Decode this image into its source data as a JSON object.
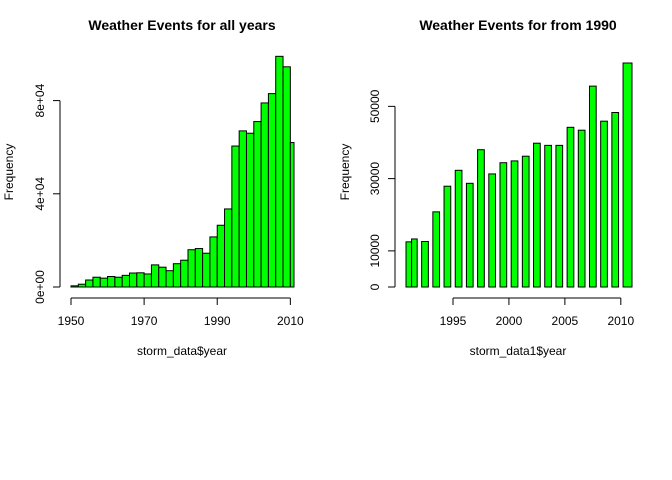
{
  "chart_data": [
    {
      "type": "bar",
      "title": "Weather Events for all years",
      "xlabel": "storm_data$year",
      "ylabel": "Frequency",
      "xlim": [
        1950,
        2011
      ],
      "ylim": [
        0,
        100000
      ],
      "x_ticks": [
        1950,
        1970,
        1990,
        2010
      ],
      "x_tick_labels": [
        "1950",
        "1970",
        "1990",
        "2010"
      ],
      "y_ticks": [
        0,
        40000,
        80000
      ],
      "y_tick_labels": [
        "0e+00",
        "4e+04",
        "8e+04"
      ],
      "bar_color": "#00ff00",
      "bins": [
        {
          "x0": 1950,
          "x1": 1952,
          "value": 500
        },
        {
          "x0": 1952,
          "x1": 1954,
          "value": 1200
        },
        {
          "x0": 1954,
          "x1": 1956,
          "value": 3000
        },
        {
          "x0": 1956,
          "x1": 1958,
          "value": 4200
        },
        {
          "x0": 1958,
          "x1": 1960,
          "value": 3800
        },
        {
          "x0": 1960,
          "x1": 1962,
          "value": 4500
        },
        {
          "x0": 1962,
          "x1": 1964,
          "value": 4200
        },
        {
          "x0": 1964,
          "x1": 1966,
          "value": 5000
        },
        {
          "x0": 1966,
          "x1": 1968,
          "value": 6000
        },
        {
          "x0": 1968,
          "x1": 1970,
          "value": 6100
        },
        {
          "x0": 1970,
          "x1": 1972,
          "value": 5600
        },
        {
          "x0": 1972,
          "x1": 1974,
          "value": 9500
        },
        {
          "x0": 1974,
          "x1": 1976,
          "value": 8500
        },
        {
          "x0": 1976,
          "x1": 1978,
          "value": 7000
        },
        {
          "x0": 1978,
          "x1": 1980,
          "value": 10000
        },
        {
          "x0": 1980,
          "x1": 1982,
          "value": 11500
        },
        {
          "x0": 1982,
          "x1": 1984,
          "value": 16000
        },
        {
          "x0": 1984,
          "x1": 1986,
          "value": 16500
        },
        {
          "x0": 1986,
          "x1": 1988,
          "value": 14500
        },
        {
          "x0": 1988,
          "x1": 1990,
          "value": 21500
        },
        {
          "x0": 1990,
          "x1": 1992,
          "value": 26500
        },
        {
          "x0": 1992,
          "x1": 1994,
          "value": 33500
        },
        {
          "x0": 1994,
          "x1": 1996,
          "value": 60500
        },
        {
          "x0": 1996,
          "x1": 1998,
          "value": 67000
        },
        {
          "x0": 1998,
          "x1": 2000,
          "value": 66000
        },
        {
          "x0": 2000,
          "x1": 2002,
          "value": 71000
        },
        {
          "x0": 2002,
          "x1": 2004,
          "value": 79000
        },
        {
          "x0": 2004,
          "x1": 2006,
          "value": 83000
        },
        {
          "x0": 2006,
          "x1": 2008,
          "value": 99000
        },
        {
          "x0": 2008,
          "x1": 2010,
          "value": 94500
        },
        {
          "x0": 2010,
          "x1": 2011,
          "value": 62000
        }
      ]
    },
    {
      "type": "bar",
      "title": "Weather Events for from 1990",
      "xlabel": "storm_data1$year",
      "ylabel": "Frequency",
      "xlim": [
        1990.8,
        2011
      ],
      "ylim": [
        0,
        62000
      ],
      "x_ticks": [
        1995,
        2000,
        2005,
        2010
      ],
      "x_tick_labels": [
        "1995",
        "2000",
        "2005",
        "2010"
      ],
      "y_ticks": [
        0,
        10000,
        30000,
        50000
      ],
      "y_tick_labels": [
        "0",
        "10000",
        "30000",
        "50000"
      ],
      "bar_color": "#00ff00",
      "bins": [
        {
          "x0": 1990.8,
          "x1": 1991.3,
          "value": 12500
        },
        {
          "x0": 1991.3,
          "x1": 1991.8,
          "value": 13300
        },
        {
          "x0": 1992.2,
          "x1": 1992.8,
          "value": 12600
        },
        {
          "x0": 1993.2,
          "x1": 1993.8,
          "value": 20800
        },
        {
          "x0": 1994.2,
          "x1": 1994.8,
          "value": 27900
        },
        {
          "x0": 1995.2,
          "x1": 1995.8,
          "value": 32300
        },
        {
          "x0": 1996.2,
          "x1": 1996.8,
          "value": 28700
        },
        {
          "x0": 1997.2,
          "x1": 1997.8,
          "value": 38000
        },
        {
          "x0": 1998.2,
          "x1": 1998.8,
          "value": 31300
        },
        {
          "x0": 1999.2,
          "x1": 1999.8,
          "value": 34400
        },
        {
          "x0": 2000.2,
          "x1": 2000.8,
          "value": 34900
        },
        {
          "x0": 2001.2,
          "x1": 2001.8,
          "value": 36200
        },
        {
          "x0": 2002.2,
          "x1": 2002.8,
          "value": 39800
        },
        {
          "x0": 2003.2,
          "x1": 2003.8,
          "value": 39200
        },
        {
          "x0": 2004.2,
          "x1": 2004.8,
          "value": 39200
        },
        {
          "x0": 2005.2,
          "x1": 2005.8,
          "value": 44200
        },
        {
          "x0": 2006.2,
          "x1": 2006.8,
          "value": 43400
        },
        {
          "x0": 2007.2,
          "x1": 2007.8,
          "value": 55600
        },
        {
          "x0": 2008.2,
          "x1": 2008.8,
          "value": 45900
        },
        {
          "x0": 2009.2,
          "x1": 2009.8,
          "value": 48300
        },
        {
          "x0": 2010.2,
          "x1": 2011.0,
          "value": 62000
        }
      ]
    }
  ]
}
